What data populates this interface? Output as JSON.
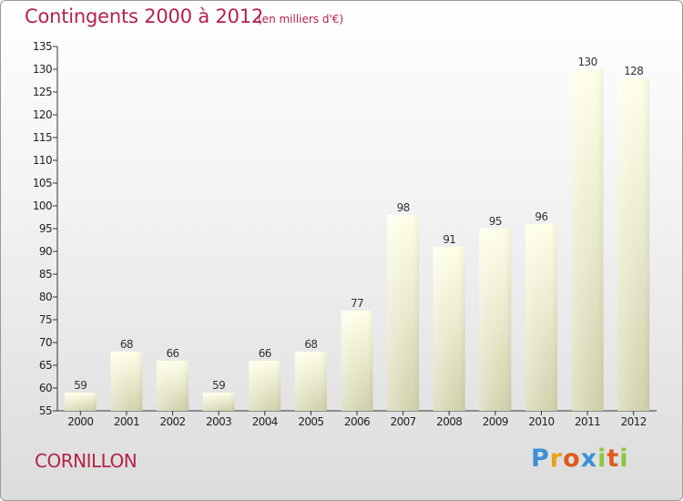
{
  "header": {
    "title": "Contingents 2000 à 2012",
    "subtitle": "(en milliers d'€)"
  },
  "footer": {
    "commune": "CORNILLON",
    "brand": "Proxiti",
    "brand_colors": [
      "#3a8fd8",
      "#e8a317",
      "#e05a1f",
      "#3a8fd8",
      "#8cc63f",
      "#e05a1f",
      "#8cc63f"
    ]
  },
  "colors": {
    "title": "#b5224a",
    "bar_top": "#ffffe8",
    "bar_bottom": "#d2d2ad"
  },
  "chart_data": {
    "type": "bar",
    "title": "Contingents 2000 à 2012",
    "subtitle": "(en milliers d'€)",
    "xlabel": "",
    "ylabel": "",
    "categories": [
      "2000",
      "2001",
      "2002",
      "2003",
      "2004",
      "2005",
      "2006",
      "2007",
      "2008",
      "2009",
      "2010",
      "2011",
      "2012"
    ],
    "values": [
      59,
      68,
      66,
      59,
      66,
      68,
      77,
      98,
      91,
      95,
      96,
      130,
      128
    ],
    "ylim": [
      55,
      135
    ],
    "yticks": [
      55,
      60,
      65,
      70,
      75,
      80,
      85,
      90,
      95,
      100,
      105,
      110,
      115,
      120,
      125,
      130,
      135
    ],
    "grid": false,
    "legend": "none"
  }
}
